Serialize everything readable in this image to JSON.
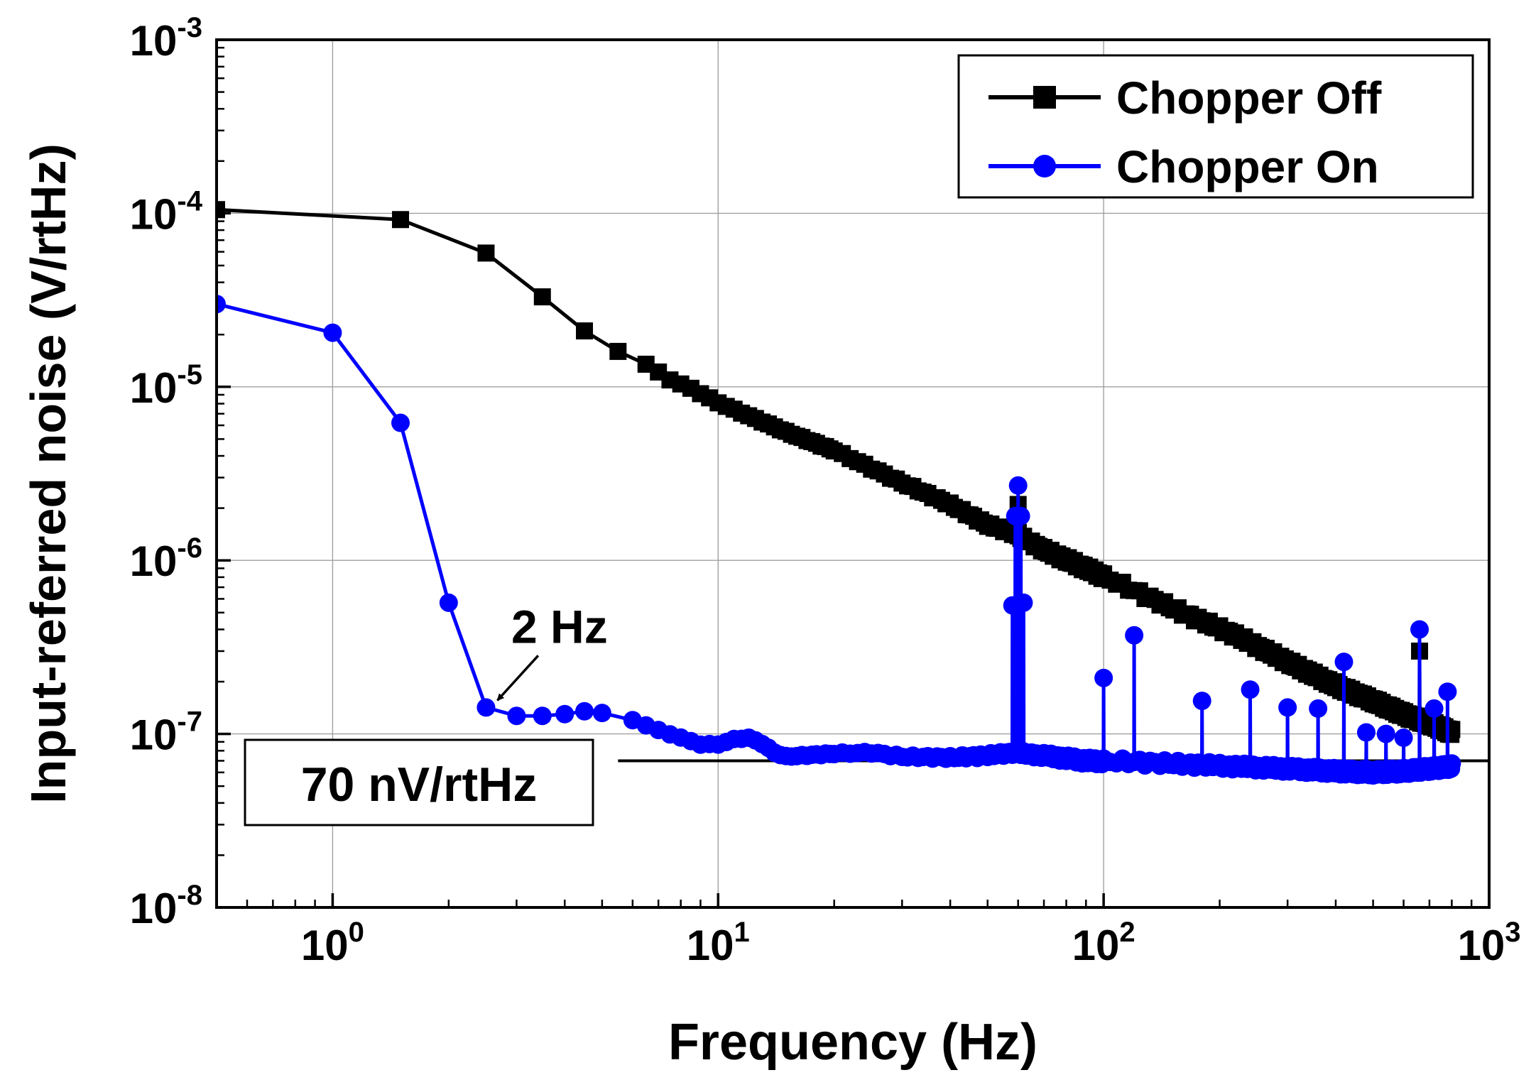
{
  "chart_data": {
    "type": "line",
    "x_scale": "log",
    "y_scale": "log",
    "xlabel": "Frequency (Hz)",
    "ylabel": "Input-referred noise (V/rtHz)",
    "xlim": [
      0.5,
      1000
    ],
    "ylim": [
      1e-08,
      0.001
    ],
    "x_ticks": [
      {
        "value": 1,
        "base": "10",
        "exp": "0"
      },
      {
        "value": 10,
        "base": "10",
        "exp": "1"
      },
      {
        "value": 100,
        "base": "10",
        "exp": "2"
      },
      {
        "value": 1000,
        "base": "10",
        "exp": "3"
      }
    ],
    "y_ticks": [
      {
        "value": 1e-08,
        "base": "10",
        "exp": "-8"
      },
      {
        "value": 1e-07,
        "base": "10",
        "exp": "-7"
      },
      {
        "value": 1e-06,
        "base": "10",
        "exp": "-6"
      },
      {
        "value": 1e-05,
        "base": "10",
        "exp": "-5"
      },
      {
        "value": 0.0001,
        "base": "10",
        "exp": "-4"
      },
      {
        "value": 0.001,
        "base": "10",
        "exp": "-3"
      }
    ],
    "grid": true,
    "legend_position": "top-right",
    "series": [
      {
        "name": "Chopper Off",
        "color": "#000000",
        "marker": "square",
        "anchors": [
          [
            0.5,
            0.000105
          ],
          [
            1.5,
            9.2e-05
          ],
          [
            2.5,
            5.9e-05
          ],
          [
            3.5,
            3.3e-05
          ],
          [
            4.5,
            2.1e-05
          ],
          [
            5.5,
            1.6e-05
          ],
          [
            6.5,
            1.35e-05
          ],
          [
            7.5,
            1.1e-05
          ],
          [
            8.5,
            9.8e-06
          ],
          [
            10,
            8.1e-06
          ],
          [
            15,
            5.5e-06
          ],
          [
            20,
            4.3e-06
          ],
          [
            30,
            2.8e-06
          ],
          [
            40,
            2.1e-06
          ],
          [
            50,
            1.6e-06
          ],
          [
            58,
            1.45e-06
          ],
          [
            70,
            1.15e-06
          ],
          [
            90,
            9e-07
          ],
          [
            120,
            6.7e-07
          ],
          [
            160,
            5e-07
          ],
          [
            220,
            3.7e-07
          ],
          [
            300,
            2.6e-07
          ],
          [
            400,
            1.9e-07
          ],
          [
            500,
            1.55e-07
          ],
          [
            600,
            1.3e-07
          ],
          [
            700,
            1.15e-07
          ],
          [
            800,
            1.02e-07
          ]
        ],
        "spikes": [
          {
            "x": 60,
            "peak": 2.1e-06,
            "base": 1.45e-06
          },
          {
            "x": 660,
            "peak": 3e-07,
            "base": 1.2e-07
          }
        ]
      },
      {
        "name": "Chopper On",
        "color": "#0000ff",
        "marker": "circle",
        "anchors": [
          [
            0.5,
            3e-05
          ],
          [
            1.0,
            2.05e-05
          ],
          [
            1.5,
            6.2e-06
          ],
          [
            2.0,
            5.7e-07
          ],
          [
            2.5,
            1.42e-07
          ],
          [
            3.0,
            1.27e-07
          ],
          [
            3.5,
            1.27e-07
          ],
          [
            4.0,
            1.3e-07
          ],
          [
            4.5,
            1.35e-07
          ],
          [
            5.0,
            1.32e-07
          ],
          [
            6.0,
            1.2e-07
          ],
          [
            7.0,
            1.05e-07
          ],
          [
            8.0,
            9.5e-08
          ],
          [
            9.0,
            8.7e-08
          ],
          [
            10,
            8.7e-08
          ],
          [
            11,
            9.3e-08
          ],
          [
            12,
            9.5e-08
          ],
          [
            13,
            8.8e-08
          ],
          [
            14,
            7.8e-08
          ],
          [
            15,
            7.4e-08
          ],
          [
            20,
            7.7e-08
          ],
          [
            25,
            7.8e-08
          ],
          [
            30,
            7.4e-08
          ],
          [
            40,
            7.3e-08
          ],
          [
            50,
            7.5e-08
          ],
          [
            58,
            7.8e-08
          ],
          [
            70,
            7.5e-08
          ],
          [
            90,
            7e-08
          ],
          [
            120,
            6.9e-08
          ],
          [
            160,
            6.7e-08
          ],
          [
            220,
            6.5e-08
          ],
          [
            300,
            6.3e-08
          ],
          [
            400,
            6.1e-08
          ],
          [
            500,
            6e-08
          ],
          [
            600,
            6.1e-08
          ],
          [
            700,
            6.3e-08
          ],
          [
            800,
            6.5e-08
          ]
        ],
        "spikes": [
          {
            "x": 58,
            "peak": 5.5e-07,
            "base": 7.8e-08
          },
          {
            "x": 59,
            "peak": 1.8e-06,
            "base": 7.8e-08
          },
          {
            "x": 60,
            "peak": 2.7e-06,
            "base": 7.8e-08
          },
          {
            "x": 61,
            "peak": 1.8e-06,
            "base": 7.8e-08
          },
          {
            "x": 62,
            "peak": 5.7e-07,
            "base": 7.8e-08
          },
          {
            "x": 100,
            "peak": 2.1e-07,
            "base": 7e-08
          },
          {
            "x": 120,
            "peak": 3.7e-07,
            "base": 6.9e-08
          },
          {
            "x": 180,
            "peak": 1.55e-07,
            "base": 6.6e-08
          },
          {
            "x": 240,
            "peak": 1.8e-07,
            "base": 6.5e-08
          },
          {
            "x": 300,
            "peak": 1.42e-07,
            "base": 6.3e-08
          },
          {
            "x": 360,
            "peak": 1.4e-07,
            "base": 6.2e-08
          },
          {
            "x": 420,
            "peak": 2.6e-07,
            "base": 6.1e-08
          },
          {
            "x": 480,
            "peak": 1.02e-07,
            "base": 6e-08
          },
          {
            "x": 540,
            "peak": 1e-07,
            "base": 6e-08
          },
          {
            "x": 600,
            "peak": 9.5e-08,
            "base": 6.1e-08
          },
          {
            "x": 660,
            "peak": 4e-07,
            "base": 6.2e-08
          },
          {
            "x": 720,
            "peak": 1.4e-07,
            "base": 6.3e-08
          },
          {
            "x": 780,
            "peak": 1.75e-07,
            "base": 6.4e-08
          }
        ]
      }
    ],
    "annotations": [
      {
        "text": "2 Hz",
        "arrow_to": [
          2.5,
          1.42e-07
        ],
        "text_at": [
          5.0,
          4.2e-07
        ]
      },
      {
        "text": "70 nV/rtHz",
        "reference_line_y": 7e-08,
        "line_x": [
          5.5,
          1000
        ]
      }
    ]
  }
}
